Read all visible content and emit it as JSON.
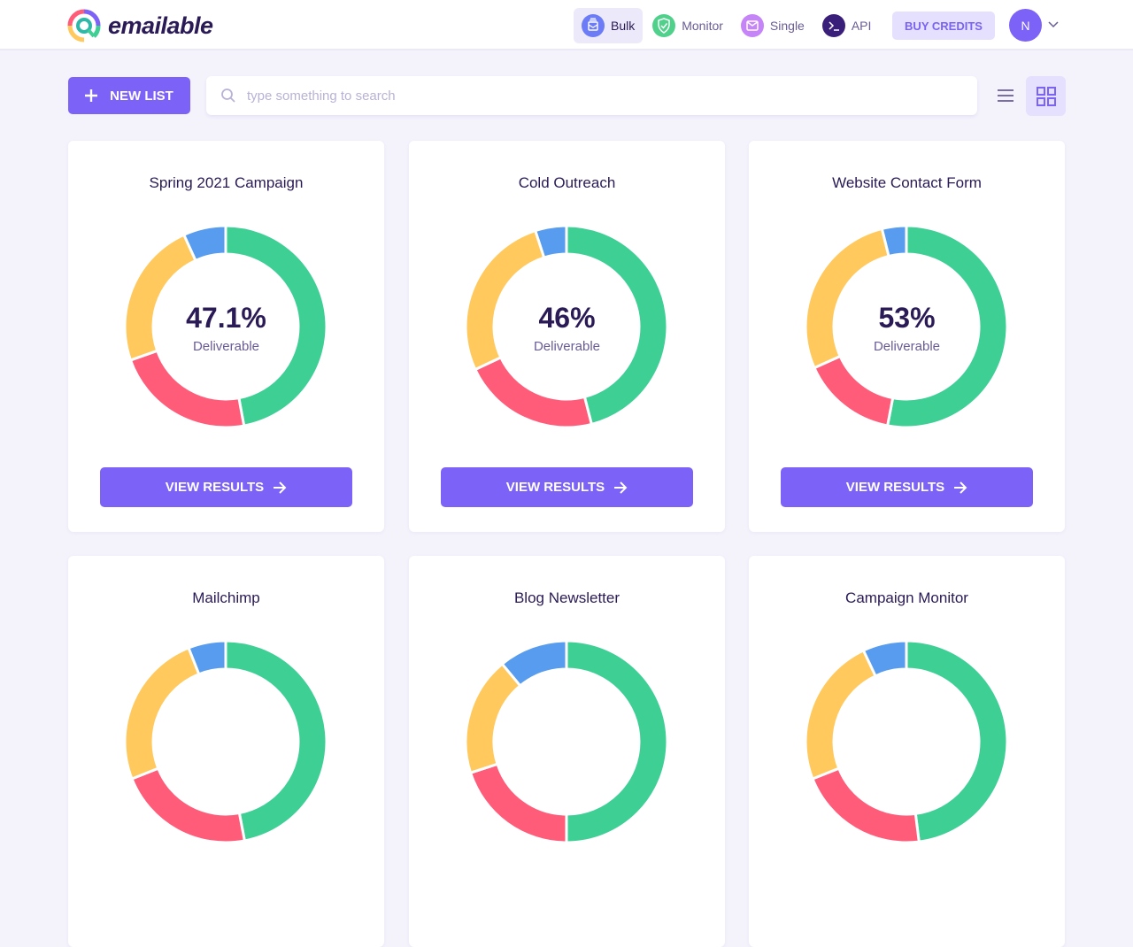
{
  "header": {
    "logo_text": "emailable",
    "nav": [
      {
        "label": "Bulk",
        "icon": "bulk-icon",
        "color": "#6c7cf6",
        "active": true
      },
      {
        "label": "Monitor",
        "icon": "shield-check-icon",
        "color": "#4fd18b",
        "active": false
      },
      {
        "label": "Single",
        "icon": "envelope-icon",
        "color": "#c584f7",
        "active": false
      },
      {
        "label": "API",
        "icon": "terminal-icon",
        "color": "#3a1f7a",
        "active": false
      }
    ],
    "buy_credits": "BUY CREDITS",
    "avatar_initial": "N"
  },
  "toolbar": {
    "new_list": "NEW LIST",
    "search_placeholder": "type something to search",
    "search_value": ""
  },
  "colors": {
    "deliverable": "#3ecf95",
    "undeliverable": "#ff5c7a",
    "risky": "#ffc95e",
    "unknown": "#579cee",
    "accent": "#7c62f6"
  },
  "cards": [
    {
      "title": "Spring 2021 Campaign",
      "percent": "47.1%",
      "label": "Deliverable",
      "button": "VIEW RESULTS",
      "segments": [
        47.1,
        22.5,
        23.6,
        6.8
      ]
    },
    {
      "title": "Cold Outreach",
      "percent": "46%",
      "label": "Deliverable",
      "button": "VIEW RESULTS",
      "segments": [
        46,
        22,
        27,
        5
      ]
    },
    {
      "title": "Website Contact Form",
      "percent": "53%",
      "label": "Deliverable",
      "button": "VIEW RESULTS",
      "segments": [
        53,
        15.3,
        27.8,
        3.9
      ]
    },
    {
      "title": "Mailchimp",
      "segments": [
        47,
        22,
        25,
        6
      ]
    },
    {
      "title": "Blog Newsletter",
      "segments": [
        50,
        20,
        19,
        11
      ]
    },
    {
      "title": "Campaign Monitor",
      "segments": [
        48,
        21,
        24,
        7
      ]
    }
  ]
}
